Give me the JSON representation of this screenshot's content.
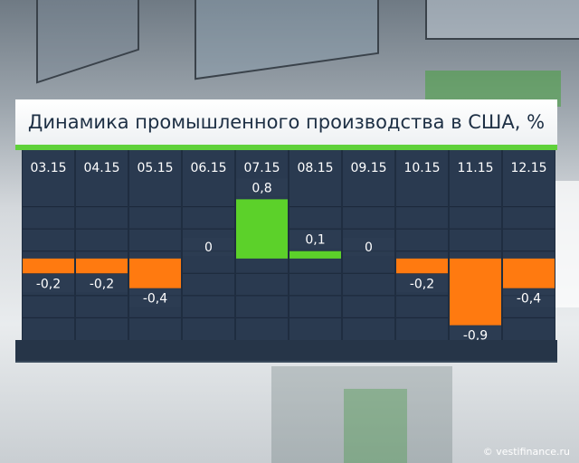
{
  "chart_data": {
    "type": "bar",
    "title": "Динамика промышленного производства в США, %",
    "categories": [
      "03.15",
      "04.15",
      "05.15",
      "06.15",
      "07.15",
      "08.15",
      "09.15",
      "10.15",
      "11.15",
      "12.15"
    ],
    "values": [
      -0.2,
      -0.2,
      -0.4,
      0,
      0.8,
      0.1,
      0,
      -0.2,
      -0.9,
      -0.4
    ],
    "value_labels": [
      "-0,2",
      "-0,2",
      "-0,4",
      "0",
      "0,8",
      "0,1",
      "0",
      "-0,2",
      "-0,9",
      "-0,4"
    ],
    "ylim": [
      -1.1,
      1.0
    ],
    "colors": {
      "positive": "#5cd12a",
      "negative": "#ff7a10"
    },
    "grid": true,
    "legend": "none"
  },
  "credit": "© vestifinance.ru"
}
